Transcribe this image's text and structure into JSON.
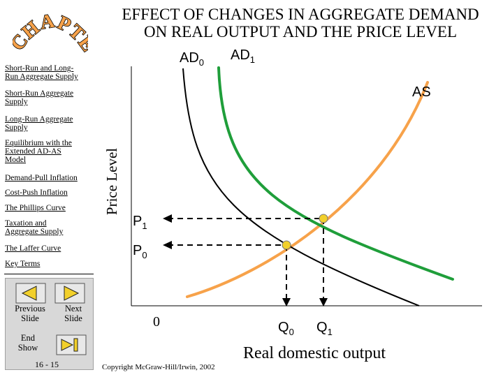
{
  "header": {
    "title_line1": "EFFECT OF CHANGES IN AGGREGATE DEMAND",
    "title_line2": "ON REAL OUTPUT AND THE PRICE LEVEL",
    "logo_text": "CHAPTER"
  },
  "sidebar": {
    "items": [
      {
        "label_lines": [
          "Short-Run and Long-",
          "Run Aggregate Supply"
        ]
      },
      {
        "label_lines": [
          "Short-Run Aggregate",
          "Supply"
        ]
      },
      {
        "label_lines": [
          "Long-Run Aggregate",
          "Supply"
        ]
      },
      {
        "label_lines": [
          "Equilibrium with the",
          "Extended AD-AS",
          "Model"
        ]
      },
      {
        "label_lines": [
          "Demand-Pull Inflation"
        ]
      },
      {
        "label_lines": [
          "Cost-Push Inflation"
        ]
      },
      {
        "label_lines": [
          "The Phillips Curve"
        ]
      },
      {
        "label_lines": [
          "Taxation and",
          "Aggregate Supply"
        ]
      },
      {
        "label_lines": [
          "The Laffer Curve"
        ]
      },
      {
        "label_lines": [
          "Key Terms"
        ]
      }
    ]
  },
  "nav": {
    "previous": [
      "Previous",
      "Slide"
    ],
    "next": [
      "Next",
      "Slide"
    ],
    "end": [
      "End",
      "Show"
    ],
    "slide_number": "16 - 15"
  },
  "diagram": {
    "y_axis_label": "Price Level",
    "x_axis_label": "Real domestic output",
    "origin_label": "0",
    "curves": {
      "as": {
        "label": "AS",
        "color": "#f7a24a"
      },
      "ad0": {
        "label_base": "AD",
        "label_sub": "0",
        "color": "#000000"
      },
      "ad1": {
        "label_base": "AD",
        "label_sub": "1",
        "color": "#1f9e3a"
      }
    },
    "points": {
      "p1": {
        "base": "P",
        "sub": "1"
      },
      "p0": {
        "base": "P",
        "sub": "0"
      },
      "q0": {
        "base": "Q",
        "sub": "0"
      },
      "q1": {
        "base": "Q",
        "sub": "1"
      }
    },
    "equilibrium_marker_color": "#f2d02b"
  },
  "footer": {
    "copyright": "Copyright McGraw-Hill/Irwin, 2002"
  }
}
